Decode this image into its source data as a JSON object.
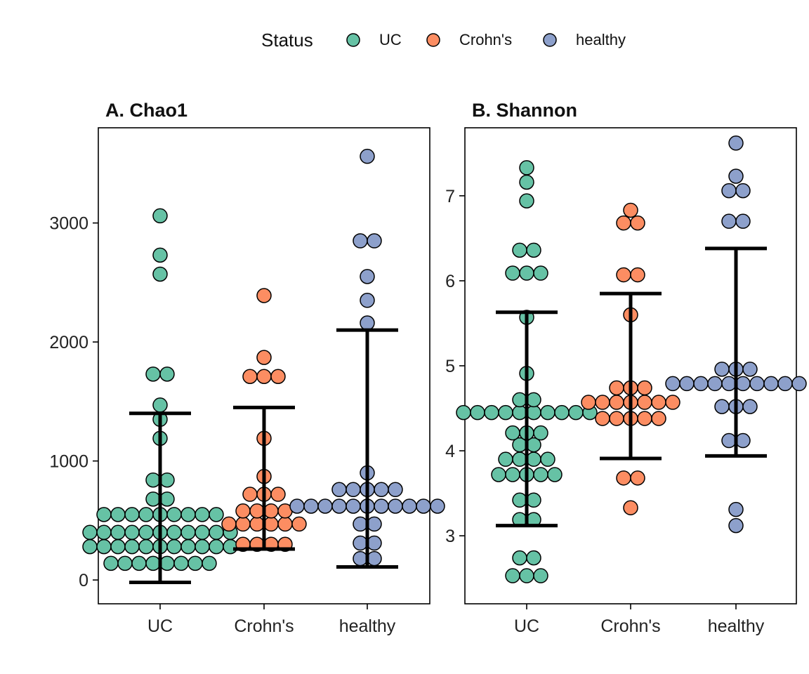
{
  "legend": {
    "title": "Status",
    "placement": "top-center",
    "entries": [
      {
        "label": "UC",
        "color": "#66C2A5"
      },
      {
        "label": "Crohn's",
        "color": "#FC8D62"
      },
      {
        "label": "healthy",
        "color": "#8DA0CB"
      }
    ]
  },
  "chart_data": [
    {
      "type": "scatter",
      "subtype": "dotplot-with-mean-sd",
      "title": "A.  Chao1",
      "xlabel": "",
      "ylabel": "",
      "categories": [
        "UC",
        "Crohn's",
        "healthy"
      ],
      "ylim": [
        -200,
        3800
      ],
      "yticks": [
        0,
        1000,
        2000,
        3000
      ],
      "grid": false,
      "groups": [
        {
          "name": "UC",
          "color": "#66C2A5",
          "mean": 690,
          "sd_low": -20,
          "sd_high": 1400,
          "points": [
            140,
            140,
            140,
            140,
            140,
            140,
            140,
            140,
            280,
            280,
            280,
            280,
            280,
            280,
            280,
            280,
            280,
            280,
            280,
            400,
            400,
            400,
            400,
            400,
            400,
            400,
            400,
            400,
            400,
            400,
            550,
            550,
            550,
            550,
            550,
            550,
            550,
            550,
            550,
            680,
            680,
            840,
            840,
            1190,
            1350,
            1470,
            1730,
            1730,
            2570,
            2730,
            3060
          ]
        },
        {
          "name": "Crohn's",
          "color": "#FC8D62",
          "mean": 850,
          "sd_low": 260,
          "sd_high": 1450,
          "points": [
            300,
            300,
            300,
            300,
            470,
            470,
            470,
            470,
            470,
            470,
            580,
            580,
            580,
            580,
            720,
            720,
            720,
            870,
            1190,
            1710,
            1710,
            1710,
            1870,
            2390
          ]
        },
        {
          "name": "healthy",
          "color": "#8DA0CB",
          "mean": 1100,
          "sd_low": 110,
          "sd_high": 2100,
          "points": [
            180,
            180,
            310,
            310,
            470,
            470,
            620,
            620,
            620,
            620,
            620,
            620,
            620,
            620,
            620,
            620,
            620,
            760,
            760,
            760,
            760,
            760,
            900,
            2160,
            2350,
            2550,
            2850,
            2850,
            3560
          ]
        }
      ]
    },
    {
      "type": "scatter",
      "subtype": "dotplot-with-mean-sd",
      "title": "B.  Shannon",
      "xlabel": "",
      "ylabel": "",
      "categories": [
        "UC",
        "Crohn's",
        "healthy"
      ],
      "ylim": [
        2.2,
        7.8
      ],
      "yticks": [
        3,
        4,
        5,
        6,
        7
      ],
      "grid": false,
      "groups": [
        {
          "name": "UC",
          "color": "#66C2A5",
          "mean": 4.37,
          "sd_low": 3.12,
          "sd_high": 5.63,
          "points": [
            2.53,
            2.53,
            2.53,
            2.74,
            2.74,
            3.19,
            3.19,
            3.42,
            3.42,
            3.72,
            3.72,
            3.72,
            3.72,
            3.72,
            3.9,
            3.9,
            3.9,
            3.9,
            4.07,
            4.07,
            4.21,
            4.21,
            4.21,
            4.45,
            4.45,
            4.45,
            4.45,
            4.45,
            4.45,
            4.45,
            4.45,
            4.45,
            4.45,
            4.6,
            4.6,
            4.91,
            5.57,
            6.09,
            6.09,
            6.09,
            6.36,
            6.36,
            6.94,
            7.16,
            7.33
          ]
        },
        {
          "name": "Crohn's",
          "color": "#FC8D62",
          "mean": 4.88,
          "sd_low": 3.91,
          "sd_high": 5.85,
          "points": [
            3.33,
            3.68,
            3.68,
            4.38,
            4.38,
            4.38,
            4.38,
            4.38,
            4.57,
            4.57,
            4.57,
            4.57,
            4.57,
            4.57,
            4.57,
            4.74,
            4.74,
            4.74,
            5.6,
            6.07,
            6.07,
            6.68,
            6.68,
            6.83
          ]
        },
        {
          "name": "healthy",
          "color": "#8DA0CB",
          "mean": 5.16,
          "sd_low": 3.94,
          "sd_high": 6.38,
          "points": [
            3.12,
            3.31,
            4.12,
            4.12,
            4.52,
            4.52,
            4.52,
            4.79,
            4.79,
            4.79,
            4.79,
            4.79,
            4.79,
            4.79,
            4.79,
            4.79,
            4.79,
            4.96,
            4.96,
            4.96,
            6.7,
            6.7,
            7.06,
            7.06,
            7.23,
            7.62
          ]
        }
      ]
    }
  ]
}
